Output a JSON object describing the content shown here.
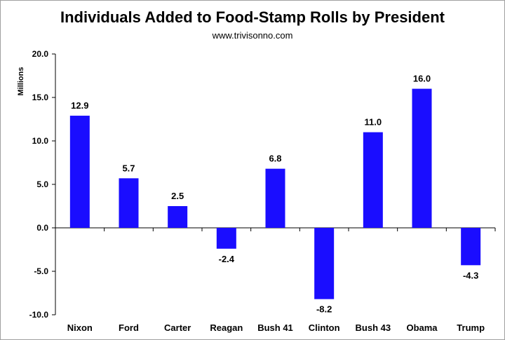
{
  "chart_data": {
    "type": "bar",
    "title": "Individuals Added to Food-Stamp Rolls by President",
    "subtitle": "www.trivisonno.com",
    "ylabel": "Millions",
    "xlabel": "",
    "ylim": [
      -10,
      20
    ],
    "yticks": [
      20,
      15,
      10,
      5,
      0,
      -5,
      -10
    ],
    "ytick_labels": [
      "20.0",
      "15.0",
      "10.0",
      "5.0",
      "0.0",
      "-5.0",
      "-10.0"
    ],
    "categories": [
      "Nixon",
      "Ford",
      "Carter",
      "Reagan",
      "Bush 41",
      "Clinton",
      "Bush 43",
      "Obama",
      "Trump"
    ],
    "values": [
      12.9,
      5.7,
      2.5,
      -2.4,
      6.8,
      -8.2,
      11.0,
      16.0,
      -4.3
    ],
    "data_labels": [
      "12.9",
      "5.7",
      "2.5",
      "-2.4",
      "6.8",
      "-8.2",
      "11.0",
      "16.0",
      "-4.3"
    ],
    "bar_color": "#1a0dff",
    "grid": false,
    "legend": "none"
  }
}
